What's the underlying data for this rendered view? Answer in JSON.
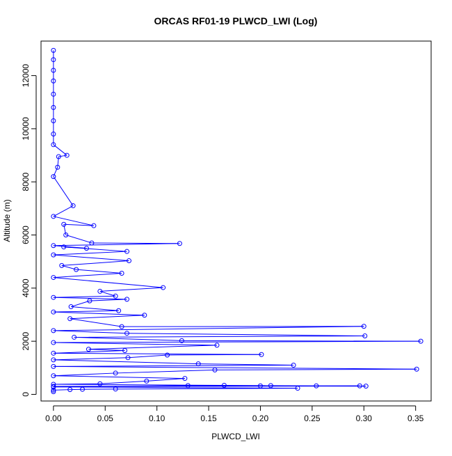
{
  "chart_data": {
    "type": "scatter",
    "title": "ORCAS RF01-19 PLWCD_LWI (Log)",
    "xlabel": "PLWCD_LWI",
    "ylabel": "Altitude (m)",
    "xlim": [
      -0.012,
      0.365
    ],
    "ylim": [
      -250,
      13300
    ],
    "x_ticks": [
      0.0,
      0.05,
      0.1,
      0.15,
      0.2,
      0.25,
      0.3,
      0.35
    ],
    "x_tick_labels": [
      "0.00",
      "0.05",
      "0.10",
      "0.15",
      "0.20",
      "0.25",
      "0.30",
      "0.35"
    ],
    "y_ticks": [
      0,
      2000,
      4000,
      6000,
      8000,
      10000,
      12000
    ],
    "y_tick_labels": [
      "0",
      "2000",
      "4000",
      "6000",
      "8000",
      "10000",
      "12000"
    ],
    "grid": false,
    "connected": true,
    "marker": "open-circle",
    "series_color": "#0000ff",
    "series": [
      {
        "name": "",
        "points": [
          {
            "x": 0.0,
            "y": 12950
          },
          {
            "x": 0.0,
            "y": 12600
          },
          {
            "x": 0.0,
            "y": 12200
          },
          {
            "x": 0.0,
            "y": 11800
          },
          {
            "x": 0.0,
            "y": 11300
          },
          {
            "x": 0.0,
            "y": 10800
          },
          {
            "x": 0.0,
            "y": 10300
          },
          {
            "x": 0.0,
            "y": 9800
          },
          {
            "x": 0.0,
            "y": 9400
          },
          {
            "x": 0.013,
            "y": 9000
          },
          {
            "x": 0.005,
            "y": 8950
          },
          {
            "x": 0.004,
            "y": 8550
          },
          {
            "x": 0.0,
            "y": 8200
          },
          {
            "x": 0.019,
            "y": 7100
          },
          {
            "x": 0.0,
            "y": 6700
          },
          {
            "x": 0.039,
            "y": 6350
          },
          {
            "x": 0.01,
            "y": 6400
          },
          {
            "x": 0.012,
            "y": 6000
          },
          {
            "x": 0.037,
            "y": 5700
          },
          {
            "x": 0.122,
            "y": 5680
          },
          {
            "x": 0.0,
            "y": 5600
          },
          {
            "x": 0.032,
            "y": 5500
          },
          {
            "x": 0.01,
            "y": 5550
          },
          {
            "x": 0.071,
            "y": 5380
          },
          {
            "x": 0.0,
            "y": 5250
          },
          {
            "x": 0.073,
            "y": 5030
          },
          {
            "x": 0.008,
            "y": 4850
          },
          {
            "x": 0.022,
            "y": 4700
          },
          {
            "x": 0.066,
            "y": 4560
          },
          {
            "x": 0.0,
            "y": 4400
          },
          {
            "x": 0.106,
            "y": 4020
          },
          {
            "x": 0.045,
            "y": 3880
          },
          {
            "x": 0.06,
            "y": 3700
          },
          {
            "x": 0.0,
            "y": 3650
          },
          {
            "x": 0.071,
            "y": 3580
          },
          {
            "x": 0.035,
            "y": 3520
          },
          {
            "x": 0.017,
            "y": 3300
          },
          {
            "x": 0.063,
            "y": 3150
          },
          {
            "x": 0.0,
            "y": 3100
          },
          {
            "x": 0.088,
            "y": 2980
          },
          {
            "x": 0.016,
            "y": 2850
          },
          {
            "x": 0.066,
            "y": 2550
          },
          {
            "x": 0.3,
            "y": 2560
          },
          {
            "x": 0.0,
            "y": 2400
          },
          {
            "x": 0.071,
            "y": 2300
          },
          {
            "x": 0.301,
            "y": 2200
          },
          {
            "x": 0.02,
            "y": 2150
          },
          {
            "x": 0.124,
            "y": 2020
          },
          {
            "x": 0.355,
            "y": 2000
          },
          {
            "x": 0.0,
            "y": 1950
          },
          {
            "x": 0.158,
            "y": 1850
          },
          {
            "x": 0.034,
            "y": 1700
          },
          {
            "x": 0.069,
            "y": 1650
          },
          {
            "x": 0.0,
            "y": 1550
          },
          {
            "x": 0.201,
            "y": 1500
          },
          {
            "x": 0.11,
            "y": 1480
          },
          {
            "x": 0.072,
            "y": 1380
          },
          {
            "x": 0.0,
            "y": 1300
          },
          {
            "x": 0.14,
            "y": 1150
          },
          {
            "x": 0.232,
            "y": 1100
          },
          {
            "x": 0.0,
            "y": 1050
          },
          {
            "x": 0.351,
            "y": 950
          },
          {
            "x": 0.156,
            "y": 920
          },
          {
            "x": 0.06,
            "y": 800
          },
          {
            "x": 0.0,
            "y": 700
          },
          {
            "x": 0.127,
            "y": 600
          },
          {
            "x": 0.09,
            "y": 500
          },
          {
            "x": 0.045,
            "y": 400
          },
          {
            "x": 0.0,
            "y": 380
          },
          {
            "x": 0.165,
            "y": 340
          },
          {
            "x": 0.21,
            "y": 330
          },
          {
            "x": 0.254,
            "y": 320
          },
          {
            "x": 0.296,
            "y": 320
          },
          {
            "x": 0.0,
            "y": 300
          },
          {
            "x": 0.302,
            "y": 310
          },
          {
            "x": 0.2,
            "y": 320
          },
          {
            "x": 0.13,
            "y": 330
          },
          {
            "x": 0.0,
            "y": 280
          },
          {
            "x": 0.236,
            "y": 230
          },
          {
            "x": 0.06,
            "y": 200
          },
          {
            "x": 0.028,
            "y": 190
          },
          {
            "x": 0.016,
            "y": 180
          },
          {
            "x": 0.0,
            "y": 160
          },
          {
            "x": 0.0,
            "y": 100
          }
        ]
      }
    ]
  }
}
